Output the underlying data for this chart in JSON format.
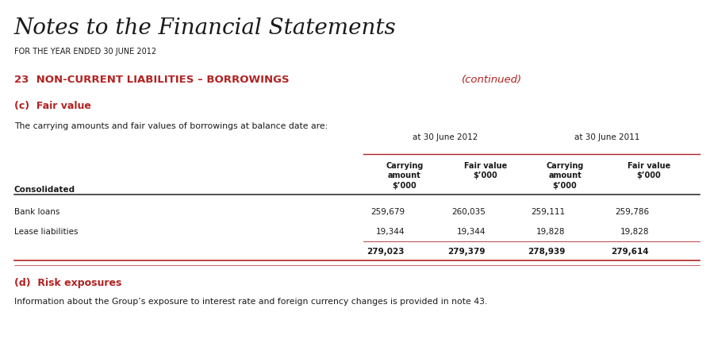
{
  "title": "Notes to the Financial Statements",
  "subtitle": "FOR THE YEAR ENDED 30 JUNE 2012",
  "section_number": "23",
  "section_title": "NON-CURRENT LIABILITIES – BORROWINGS",
  "section_continued": "(continued)",
  "subsection_c": "(c)  Fair value",
  "desc_c": "The carrying amounts and fair values of borrowings at balance date are:",
  "group_label_2012": "at 30 June 2012",
  "group_label_2011": "at 30 June 2011",
  "col_headers": [
    "Carrying\namount\n$’000",
    "Fair value\n$’000",
    "Carrying\namount\n$’000",
    "Fair value\n$’000"
  ],
  "row_label_header": "Consolidated",
  "rows": [
    {
      "label": "Bank loans",
      "v1": "259,679",
      "v2": "260,035",
      "v3": "259,111",
      "v4": "259,786"
    },
    {
      "label": "Lease liabilities",
      "v1": "19,344",
      "v2": "19,344",
      "v3": "19,828",
      "v4": "19,828"
    },
    {
      "label": "",
      "v1": "279,023",
      "v2": "279,379",
      "v3": "278,939",
      "v4": "279,614"
    }
  ],
  "subsection_d": "(d)  Risk exposures",
  "desc_d": "Information about the Group’s exposure to interest rate and foreign currency changes is provided in note 43.",
  "color_red": "#b22222",
  "color_black": "#1a1a1a",
  "bg_color": "#ffffff"
}
